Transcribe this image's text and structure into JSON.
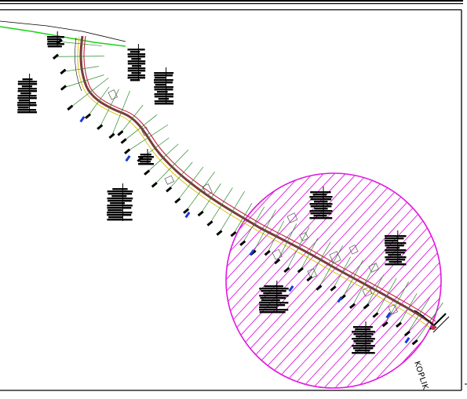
{
  "drawing": {
    "place_label": "KOPLIK",
    "colors": {
      "frame": "#000000",
      "road_primary": "#7a3b3b",
      "road_accent": "#c8304a",
      "road_yellow": "#d8c000",
      "green_line": "#19d219",
      "zone_circle": "#e018e0",
      "hatch": "#e018e0",
      "ticks": "#2a8a2a",
      "markers_blue": "#1a3ad8",
      "labels": "#000000"
    },
    "icons": [
      "road-alignment",
      "station-ticks",
      "building-blocks",
      "hatched-zone-circle"
    ]
  }
}
